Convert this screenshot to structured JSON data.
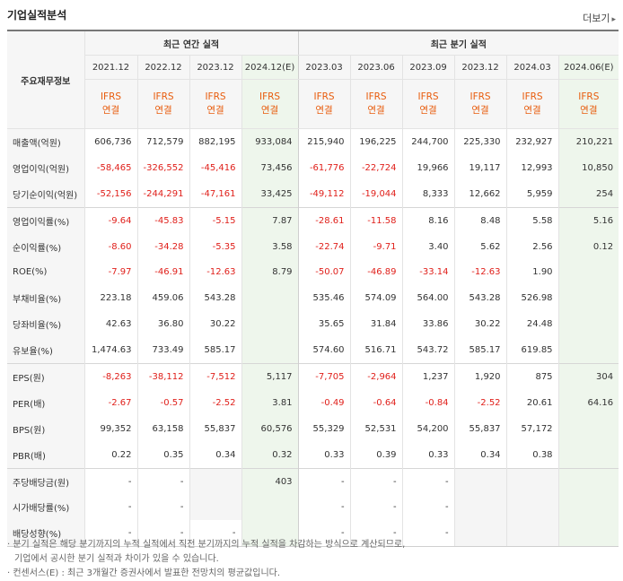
{
  "title": "기업실적분석",
  "more_label": "더보기",
  "header": {
    "corner_label": "주요재무정보",
    "annual_group": "최근 연간 실적",
    "quarterly_group": "최근 분기 실적",
    "periods": [
      "2021.12",
      "2022.12",
      "2023.12",
      "2024.12(E)",
      "2023.03",
      "2023.06",
      "2023.09",
      "2023.12",
      "2024.03",
      "2024.06(E)"
    ],
    "standard_line1": "IFRS",
    "standard_line2": "연결"
  },
  "rows": [
    {
      "label": "매출액(억원)",
      "values": [
        "606,736",
        "712,579",
        "882,195",
        "933,084",
        "215,940",
        "196,225",
        "244,700",
        "225,330",
        "232,927",
        "210,221"
      ]
    },
    {
      "label": "영업이익(억원)",
      "values": [
        "-58,465",
        "-326,552",
        "-45,416",
        "73,456",
        "-61,776",
        "-22,724",
        "19,966",
        "19,117",
        "12,993",
        "10,850"
      ]
    },
    {
      "label": "당기순이익(억원)",
      "values": [
        "-52,156",
        "-244,291",
        "-47,161",
        "33,425",
        "-49,112",
        "-19,044",
        "8,333",
        "12,662",
        "5,959",
        "254"
      ]
    },
    {
      "label": "영업이익률(%)",
      "values": [
        "-9.64",
        "-45.83",
        "-5.15",
        "7.87",
        "-28.61",
        "-11.58",
        "8.16",
        "8.48",
        "5.58",
        "5.16"
      ]
    },
    {
      "label": "순이익률(%)",
      "values": [
        "-8.60",
        "-34.28",
        "-5.35",
        "3.58",
        "-22.74",
        "-9.71",
        "3.40",
        "5.62",
        "2.56",
        "0.12"
      ]
    },
    {
      "label": "ROE(%)",
      "values": [
        "-7.97",
        "-46.91",
        "-12.63",
        "8.79",
        "-50.07",
        "-46.89",
        "-33.14",
        "-12.63",
        "1.90",
        ""
      ]
    },
    {
      "label": "부채비율(%)",
      "values": [
        "223.18",
        "459.06",
        "543.28",
        "",
        "535.46",
        "574.09",
        "564.00",
        "543.28",
        "526.98",
        ""
      ]
    },
    {
      "label": "당좌비율(%)",
      "values": [
        "42.63",
        "36.80",
        "30.22",
        "",
        "35.65",
        "31.84",
        "33.86",
        "30.22",
        "24.48",
        ""
      ]
    },
    {
      "label": "유보율(%)",
      "values": [
        "1,474.63",
        "733.49",
        "585.17",
        "",
        "574.60",
        "516.71",
        "543.72",
        "585.17",
        "619.85",
        ""
      ]
    },
    {
      "label": "EPS(원)",
      "values": [
        "-8,263",
        "-38,112",
        "-7,512",
        "5,117",
        "-7,705",
        "-2,964",
        "1,237",
        "1,920",
        "875",
        "304"
      ]
    },
    {
      "label": "PER(배)",
      "values": [
        "-2.67",
        "-0.57",
        "-2.52",
        "3.81",
        "-0.49",
        "-0.64",
        "-0.84",
        "-2.52",
        "20.61",
        "64.16"
      ]
    },
    {
      "label": "BPS(원)",
      "values": [
        "99,352",
        "63,158",
        "55,837",
        "60,576",
        "55,329",
        "52,531",
        "54,200",
        "55,837",
        "57,172",
        ""
      ]
    },
    {
      "label": "PBR(배)",
      "values": [
        "0.22",
        "0.35",
        "0.34",
        "0.32",
        "0.33",
        "0.39",
        "0.33",
        "0.34",
        "0.38",
        ""
      ]
    },
    {
      "label": "주당배당금(원)",
      "values": [
        "-",
        "-",
        "",
        "403",
        "-",
        "-",
        "-",
        "",
        "",
        ""
      ]
    },
    {
      "label": "시가배당률(%)",
      "values": [
        "-",
        "-",
        "",
        "",
        "-",
        "-",
        "-",
        "",
        "",
        ""
      ]
    },
    {
      "label": "배당성향(%)",
      "values": [
        "-",
        "-",
        "-",
        "",
        "-",
        "-",
        "-",
        "",
        "",
        ""
      ]
    }
  ],
  "notes": [
    "· 분기 실적은 해당 분기까지의 누적 실적에서 직전 분기까지의 누적 실적을 차감하는 방식으로 계산되므로,",
    "  기업에서 공시한 분기 실적과 차이가 있을 수 있습니다.",
    "· 컨센서스(E) : 최근 3개월간 증권사에서 발표한 전망치의 평균값입니다."
  ],
  "colors": {
    "negative": "#e0201b",
    "estimate_bg": "#eef6ec",
    "ifrs": "#e85c0d"
  }
}
